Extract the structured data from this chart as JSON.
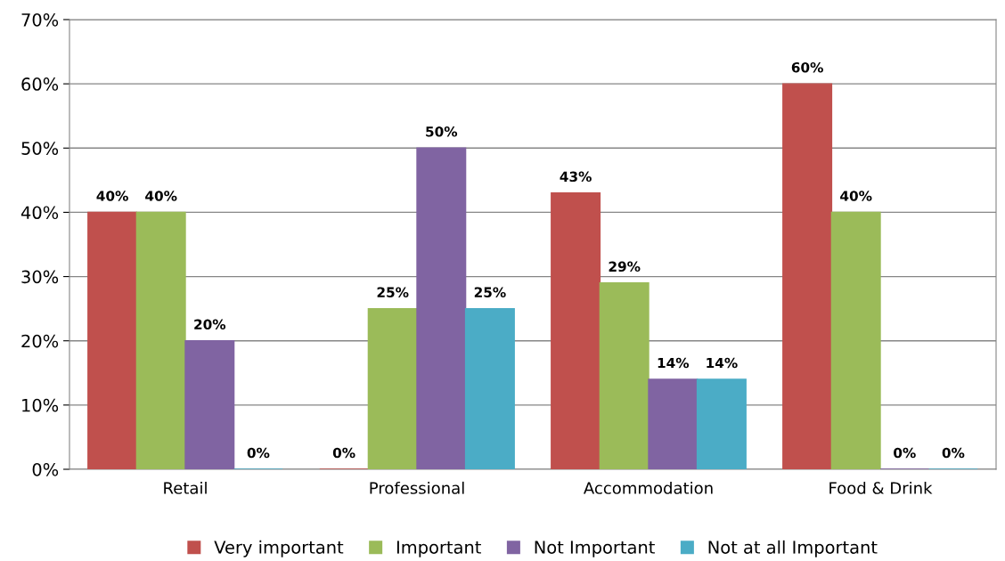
{
  "chart_data": {
    "type": "bar",
    "categories": [
      "Retail",
      "Professional",
      "Accommodation",
      "Food & Drink"
    ],
    "series": [
      {
        "name": "Very important",
        "color": "#c0504d",
        "values": [
          40,
          0,
          43,
          60
        ],
        "value_labels": [
          "40%",
          "0%",
          "43%",
          "60%"
        ]
      },
      {
        "name": "Important",
        "color": "#9bbb59",
        "values": [
          40,
          25,
          29,
          40
        ],
        "value_labels": [
          "40%",
          "25%",
          "29%",
          "40%"
        ]
      },
      {
        "name": "Not Important",
        "color": "#8064a2",
        "values": [
          20,
          50,
          14,
          0
        ],
        "value_labels": [
          "20%",
          "50%",
          "14%",
          "0%"
        ]
      },
      {
        "name": "Not at all Important",
        "color": "#4bacc6",
        "values": [
          0,
          25,
          14,
          0
        ],
        "value_labels": [
          "0%",
          "25%",
          "14%",
          "0%"
        ]
      }
    ],
    "ylim": [
      0,
      70
    ],
    "yticks": [
      {
        "value": 0,
        "label": "0%"
      },
      {
        "value": 10,
        "label": "10%"
      },
      {
        "value": 20,
        "label": "20%"
      },
      {
        "value": 30,
        "label": "30%"
      },
      {
        "value": 40,
        "label": "40%"
      },
      {
        "value": 50,
        "label": "50%"
      },
      {
        "value": 60,
        "label": "60%"
      },
      {
        "value": 70,
        "label": "70%"
      }
    ],
    "grid": "y",
    "legend": "bottom"
  }
}
